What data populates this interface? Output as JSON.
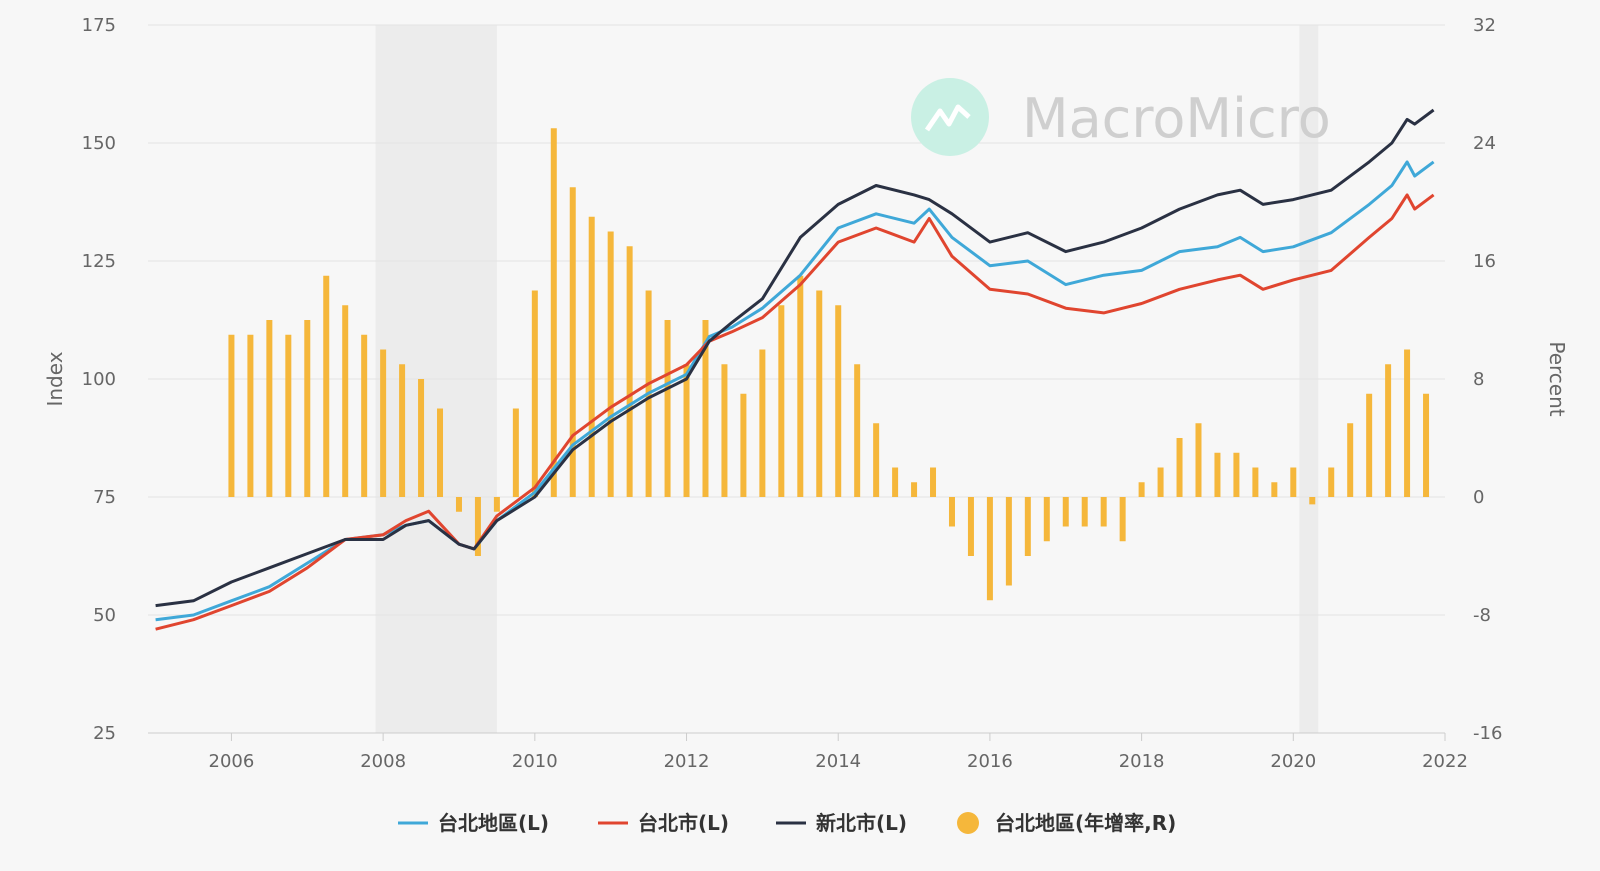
{
  "chart_data": {
    "type": "line",
    "title": "",
    "watermark": "MacroMicro",
    "ylabel_left": "Index",
    "ylabel_right": "Percent",
    "x_ticks": [
      "2006",
      "2008",
      "2010",
      "2012",
      "2014",
      "2016",
      "2018",
      "2020",
      "2022"
    ],
    "x_range": [
      2004.9,
      2022
    ],
    "ylim_left": [
      25,
      175
    ],
    "ylim_right": [
      -16,
      32
    ],
    "yticks_left": [
      "25",
      "50",
      "75",
      "100",
      "125",
      "150",
      "175"
    ],
    "yticks_right": [
      "-16",
      "-8",
      "0",
      "8",
      "16",
      "24",
      "32"
    ],
    "grid": true,
    "legend_position": "bottom",
    "shaded_periods": [
      [
        2007.9,
        2009.5
      ],
      [
        2020.08,
        2020.33
      ]
    ],
    "series": [
      {
        "name": "台北地區(L)",
        "axis": "left",
        "kind": "line",
        "color": "#3fa8d8",
        "points": [
          [
            2005.0,
            49
          ],
          [
            2005.5,
            50
          ],
          [
            2006.0,
            53
          ],
          [
            2006.5,
            56
          ],
          [
            2007.0,
            61
          ],
          [
            2007.5,
            66
          ],
          [
            2008.0,
            67
          ],
          [
            2008.3,
            69
          ],
          [
            2008.6,
            70
          ],
          [
            2009.0,
            65
          ],
          [
            2009.2,
            64
          ],
          [
            2009.5,
            70
          ],
          [
            2010.0,
            76
          ],
          [
            2010.5,
            86
          ],
          [
            2011.0,
            92
          ],
          [
            2011.5,
            97
          ],
          [
            2012.0,
            101
          ],
          [
            2012.3,
            109
          ],
          [
            2012.6,
            111
          ],
          [
            2013.0,
            115
          ],
          [
            2013.5,
            122
          ],
          [
            2014.0,
            132
          ],
          [
            2014.5,
            135
          ],
          [
            2015.0,
            133
          ],
          [
            2015.2,
            136
          ],
          [
            2015.5,
            130
          ],
          [
            2016.0,
            124
          ],
          [
            2016.5,
            125
          ],
          [
            2017.0,
            120
          ],
          [
            2017.5,
            122
          ],
          [
            2018.0,
            123
          ],
          [
            2018.5,
            127
          ],
          [
            2019.0,
            128
          ],
          [
            2019.3,
            130
          ],
          [
            2019.6,
            127
          ],
          [
            2020.0,
            128
          ],
          [
            2020.5,
            131
          ],
          [
            2021.0,
            137
          ],
          [
            2021.3,
            141
          ],
          [
            2021.5,
            146
          ],
          [
            2021.6,
            143
          ],
          [
            2021.85,
            146
          ]
        ]
      },
      {
        "name": "台北市(L)",
        "axis": "left",
        "kind": "line",
        "color": "#e0452f",
        "points": [
          [
            2005.0,
            47
          ],
          [
            2005.5,
            49
          ],
          [
            2006.0,
            52
          ],
          [
            2006.5,
            55
          ],
          [
            2007.0,
            60
          ],
          [
            2007.5,
            66
          ],
          [
            2008.0,
            67
          ],
          [
            2008.3,
            70
          ],
          [
            2008.6,
            72
          ],
          [
            2009.0,
            65
          ],
          [
            2009.2,
            64
          ],
          [
            2009.5,
            71
          ],
          [
            2010.0,
            77
          ],
          [
            2010.5,
            88
          ],
          [
            2011.0,
            94
          ],
          [
            2011.5,
            99
          ],
          [
            2012.0,
            103
          ],
          [
            2012.3,
            108
          ],
          [
            2012.6,
            110
          ],
          [
            2013.0,
            113
          ],
          [
            2013.5,
            120
          ],
          [
            2014.0,
            129
          ],
          [
            2014.5,
            132
          ],
          [
            2015.0,
            129
          ],
          [
            2015.2,
            134
          ],
          [
            2015.5,
            126
          ],
          [
            2016.0,
            119
          ],
          [
            2016.5,
            118
          ],
          [
            2017.0,
            115
          ],
          [
            2017.5,
            114
          ],
          [
            2018.0,
            116
          ],
          [
            2018.5,
            119
          ],
          [
            2019.0,
            121
          ],
          [
            2019.3,
            122
          ],
          [
            2019.6,
            119
          ],
          [
            2020.0,
            121
          ],
          [
            2020.5,
            123
          ],
          [
            2021.0,
            130
          ],
          [
            2021.3,
            134
          ],
          [
            2021.5,
            139
          ],
          [
            2021.6,
            136
          ],
          [
            2021.85,
            139
          ]
        ]
      },
      {
        "name": "新北市(L)",
        "axis": "left",
        "kind": "line",
        "color": "#2a3143",
        "points": [
          [
            2005.0,
            52
          ],
          [
            2005.5,
            53
          ],
          [
            2006.0,
            57
          ],
          [
            2006.5,
            60
          ],
          [
            2007.0,
            63
          ],
          [
            2007.5,
            66
          ],
          [
            2008.0,
            66
          ],
          [
            2008.3,
            69
          ],
          [
            2008.6,
            70
          ],
          [
            2009.0,
            65
          ],
          [
            2009.2,
            64
          ],
          [
            2009.5,
            70
          ],
          [
            2010.0,
            75
          ],
          [
            2010.5,
            85
          ],
          [
            2011.0,
            91
          ],
          [
            2011.5,
            96
          ],
          [
            2012.0,
            100
          ],
          [
            2012.3,
            108
          ],
          [
            2012.6,
            112
          ],
          [
            2013.0,
            117
          ],
          [
            2013.5,
            130
          ],
          [
            2014.0,
            137
          ],
          [
            2014.5,
            141
          ],
          [
            2015.0,
            139
          ],
          [
            2015.2,
            138
          ],
          [
            2015.5,
            135
          ],
          [
            2016.0,
            129
          ],
          [
            2016.5,
            131
          ],
          [
            2017.0,
            127
          ],
          [
            2017.5,
            129
          ],
          [
            2018.0,
            132
          ],
          [
            2018.5,
            136
          ],
          [
            2019.0,
            139
          ],
          [
            2019.3,
            140
          ],
          [
            2019.6,
            137
          ],
          [
            2020.0,
            138
          ],
          [
            2020.5,
            140
          ],
          [
            2021.0,
            146
          ],
          [
            2021.3,
            150
          ],
          [
            2021.5,
            155
          ],
          [
            2021.6,
            154
          ],
          [
            2021.85,
            157
          ]
        ]
      },
      {
        "name": "台北地區(年增率,R)",
        "axis": "right",
        "kind": "bar",
        "color": "#f5b73b",
        "points": [
          [
            2006.0,
            11
          ],
          [
            2006.25,
            11
          ],
          [
            2006.5,
            12
          ],
          [
            2006.75,
            11
          ],
          [
            2007.0,
            12
          ],
          [
            2007.25,
            15
          ],
          [
            2007.5,
            13
          ],
          [
            2007.75,
            11
          ],
          [
            2008.0,
            10
          ],
          [
            2008.25,
            9
          ],
          [
            2008.5,
            8
          ],
          [
            2008.75,
            6
          ],
          [
            2009.0,
            -1
          ],
          [
            2009.25,
            -4
          ],
          [
            2009.5,
            -1
          ],
          [
            2009.75,
            6
          ],
          [
            2010.0,
            14
          ],
          [
            2010.25,
            25
          ],
          [
            2010.5,
            21
          ],
          [
            2010.75,
            19
          ],
          [
            2011.0,
            18
          ],
          [
            2011.25,
            17
          ],
          [
            2011.5,
            14
          ],
          [
            2011.75,
            12
          ],
          [
            2012.0,
            9
          ],
          [
            2012.25,
            12
          ],
          [
            2012.5,
            9
          ],
          [
            2012.75,
            7
          ],
          [
            2013.0,
            10
          ],
          [
            2013.25,
            13
          ],
          [
            2013.5,
            15
          ],
          [
            2013.75,
            14
          ],
          [
            2014.0,
            13
          ],
          [
            2014.25,
            9
          ],
          [
            2014.5,
            5
          ],
          [
            2014.75,
            2
          ],
          [
            2015.0,
            1
          ],
          [
            2015.25,
            2
          ],
          [
            2015.5,
            -2
          ],
          [
            2015.75,
            -4
          ],
          [
            2016.0,
            -7
          ],
          [
            2016.25,
            -6
          ],
          [
            2016.5,
            -4
          ],
          [
            2016.75,
            -3
          ],
          [
            2017.0,
            -2
          ],
          [
            2017.25,
            -2
          ],
          [
            2017.5,
            -2
          ],
          [
            2017.75,
            -3
          ],
          [
            2018.0,
            1
          ],
          [
            2018.25,
            2
          ],
          [
            2018.5,
            4
          ],
          [
            2018.75,
            5
          ],
          [
            2019.0,
            3
          ],
          [
            2019.25,
            3
          ],
          [
            2019.5,
            2
          ],
          [
            2019.75,
            1
          ],
          [
            2020.0,
            2
          ],
          [
            2020.25,
            -0.5
          ],
          [
            2020.5,
            2
          ],
          [
            2020.75,
            5
          ],
          [
            2021.0,
            7
          ],
          [
            2021.25,
            9
          ],
          [
            2021.5,
            10
          ],
          [
            2021.75,
            7
          ]
        ]
      }
    ]
  }
}
